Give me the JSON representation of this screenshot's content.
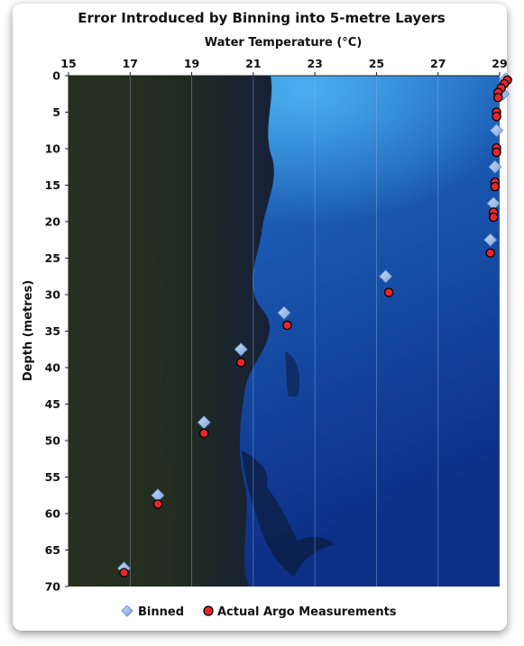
{
  "chart_data": {
    "type": "scatter",
    "title": "Error Introduced by Binning into 5-metre Layers",
    "xlabel": "Water Temperature (°C)",
    "ylabel": "Depth (metres)",
    "xlim": [
      15,
      29
    ],
    "ylim": [
      0,
      70
    ],
    "y_reversed": true,
    "x_axis_position": "top",
    "x_ticks": [
      "15",
      "17",
      "19",
      "21",
      "23",
      "25",
      "27",
      "29"
    ],
    "y_ticks": [
      "0",
      "5",
      "10",
      "15",
      "20",
      "25",
      "30",
      "35",
      "40",
      "45",
      "50",
      "55",
      "60",
      "65",
      "70"
    ],
    "legend_position": "bottom",
    "series": [
      {
        "name": "Binned",
        "marker": "diamond",
        "color": "#9bbbe6",
        "points": [
          [
            29.2,
            0.5
          ],
          [
            29.1,
            2.5
          ],
          [
            28.9,
            7.5
          ],
          [
            28.85,
            12.5
          ],
          [
            28.8,
            17.5
          ],
          [
            28.7,
            22.5
          ],
          [
            25.3,
            27.5
          ],
          [
            22.0,
            32.5
          ],
          [
            20.6,
            37.5
          ],
          [
            19.4,
            47.5
          ],
          [
            17.9,
            57.5
          ],
          [
            16.8,
            67.5
          ]
        ]
      },
      {
        "name": "Actual Argo Measurements",
        "marker": "circle",
        "color": "#e8262a",
        "points": [
          [
            29.25,
            0.6
          ],
          [
            29.15,
            1.1
          ],
          [
            29.05,
            1.7
          ],
          [
            28.95,
            2.3
          ],
          [
            28.95,
            3.0
          ],
          [
            28.9,
            5.0
          ],
          [
            28.9,
            5.6
          ],
          [
            28.9,
            9.9
          ],
          [
            28.9,
            10.5
          ],
          [
            28.85,
            14.6
          ],
          [
            28.85,
            15.2
          ],
          [
            28.8,
            18.7
          ],
          [
            28.8,
            19.4
          ],
          [
            28.7,
            24.3
          ],
          [
            25.4,
            29.7
          ],
          [
            22.1,
            34.2
          ],
          [
            20.6,
            39.3
          ],
          [
            19.4,
            49.0
          ],
          [
            17.9,
            58.7
          ],
          [
            16.8,
            68.1
          ]
        ]
      }
    ]
  }
}
